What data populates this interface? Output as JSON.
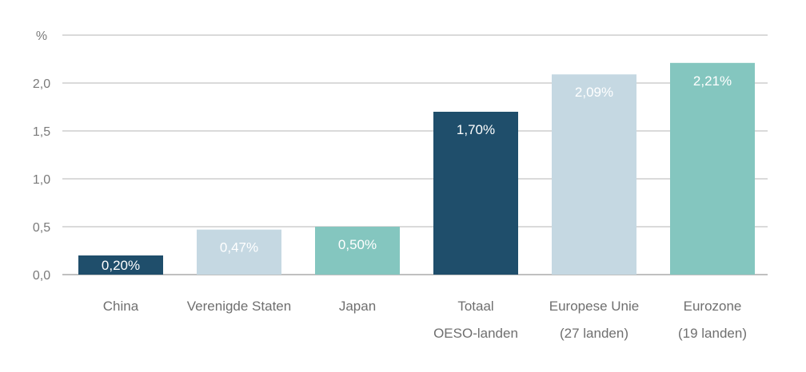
{
  "chart_data": {
    "type": "bar",
    "unit_label": "%",
    "categories": [
      [
        "China"
      ],
      [
        "Verenigde Staten"
      ],
      [
        "Japan"
      ],
      [
        "Totaal",
        "OESO-landen"
      ],
      [
        "Europese Unie",
        "(27 landen)"
      ],
      [
        "Eurozone",
        "(19 landen)"
      ]
    ],
    "values": [
      0.2,
      0.47,
      0.5,
      1.7,
      2.09,
      2.21
    ],
    "data_labels": [
      "0,20%",
      "0,47%",
      "0,50%",
      "1,70%",
      "2,09%",
      "2,21%"
    ],
    "colors": [
      "#1f4e6b",
      "#c5d8e2",
      "#84c6bf",
      "#1f4e6b",
      "#c5d8e2",
      "#84c6bf"
    ],
    "yticks": [
      0.0,
      0.5,
      1.0,
      1.5,
      2.0
    ],
    "ytick_labels": [
      "0,0",
      "0,5",
      "1,0",
      "1,5",
      "2,0"
    ],
    "ylim": [
      0,
      2.5
    ],
    "grid": true
  }
}
